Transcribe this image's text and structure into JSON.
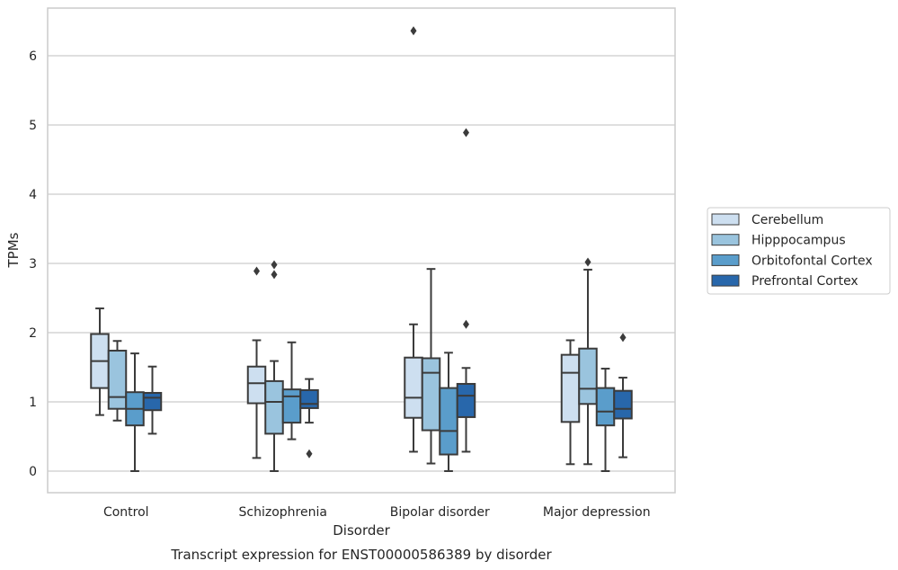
{
  "chart_data": {
    "type": "box",
    "title": "Transcript expression for ENST00000586389 by disorder",
    "xlabel": "Disorder",
    "ylabel": "TPMs",
    "ylim": [
      -0.3,
      6.7
    ],
    "yticks": [
      0,
      1,
      2,
      3,
      4,
      5,
      6
    ],
    "grid": "horizontal",
    "legend_position": "right",
    "categories": [
      "Control",
      "Schizophrenia",
      "Bipolar disorder",
      "Major depression"
    ],
    "series": [
      {
        "name": "Cerebellum",
        "color": "#cddff0",
        "boxes": [
          {
            "whislo": 0.81,
            "q1": 1.2,
            "med": 1.59,
            "q3": 1.98,
            "whishi": 2.35,
            "fliers": []
          },
          {
            "whislo": 0.19,
            "q1": 0.98,
            "med": 1.27,
            "q3": 1.51,
            "whishi": 1.89,
            "fliers": [
              2.89
            ]
          },
          {
            "whislo": 0.28,
            "q1": 0.77,
            "med": 1.06,
            "q3": 1.64,
            "whishi": 2.12,
            "fliers": [
              6.36
            ]
          },
          {
            "whislo": 0.1,
            "q1": 0.71,
            "med": 1.42,
            "q3": 1.68,
            "whishi": 1.89,
            "fliers": []
          }
        ]
      },
      {
        "name": "Hipppocampus",
        "color": "#9ac4de",
        "boxes": [
          {
            "whislo": 0.73,
            "q1": 0.9,
            "med": 1.07,
            "q3": 1.74,
            "whishi": 1.88,
            "fliers": []
          },
          {
            "whislo": 0.0,
            "q1": 0.54,
            "med": 1.0,
            "q3": 1.3,
            "whishi": 1.59,
            "fliers": [
              2.84,
              2.98
            ]
          },
          {
            "whislo": 0.11,
            "q1": 0.59,
            "med": 1.42,
            "q3": 1.63,
            "whishi": 2.92,
            "fliers": []
          },
          {
            "whislo": 0.1,
            "q1": 0.97,
            "med": 1.19,
            "q3": 1.77,
            "whishi": 2.91,
            "fliers": [
              3.02
            ]
          }
        ]
      },
      {
        "name": "Orbitofontal Cortex",
        "color": "#5a9dcb",
        "boxes": [
          {
            "whislo": 0.0,
            "q1": 0.66,
            "med": 0.9,
            "q3": 1.14,
            "whishi": 1.7,
            "fliers": []
          },
          {
            "whislo": 0.46,
            "q1": 0.7,
            "med": 1.08,
            "q3": 1.18,
            "whishi": 1.86,
            "fliers": []
          },
          {
            "whislo": 0.0,
            "q1": 0.24,
            "med": 0.58,
            "q3": 1.2,
            "whishi": 1.71,
            "fliers": []
          },
          {
            "whislo": 0.0,
            "q1": 0.66,
            "med": 0.86,
            "q3": 1.2,
            "whishi": 1.48,
            "fliers": []
          }
        ]
      },
      {
        "name": "Prefrontal Cortex",
        "color": "#2867ab",
        "boxes": [
          {
            "whislo": 0.54,
            "q1": 0.88,
            "med": 1.06,
            "q3": 1.13,
            "whishi": 1.51,
            "fliers": []
          },
          {
            "whislo": 0.7,
            "q1": 0.91,
            "med": 0.97,
            "q3": 1.17,
            "whishi": 1.33,
            "fliers": [
              0.25
            ]
          },
          {
            "whislo": 0.28,
            "q1": 0.78,
            "med": 1.09,
            "q3": 1.26,
            "whishi": 1.49,
            "fliers": [
              2.12,
              4.89
            ]
          },
          {
            "whislo": 0.2,
            "q1": 0.76,
            "med": 0.9,
            "q3": 1.16,
            "whishi": 1.35,
            "fliers": [
              1.93
            ]
          }
        ]
      }
    ]
  }
}
